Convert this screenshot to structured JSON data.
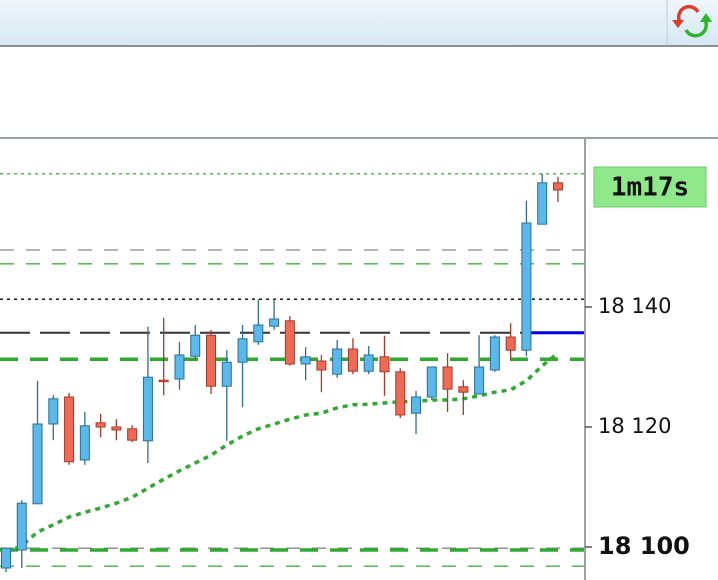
{
  "chart_data": {
    "type": "candlestick",
    "timer": "1m17s",
    "up_color": "#5bb8ea",
    "down_color": "#ee6a55",
    "open": [
      18096.5,
      18099.5,
      18107.2,
      18120.5,
      18125,
      18114.5,
      18120.7,
      18120,
      18119.7,
      18117.7,
      18127.8,
      18128,
      18131.8,
      18135.3,
      18126.8,
      18130.8,
      18134.2,
      18136.8,
      18137.7,
      18130.5,
      18131,
      18128.8,
      18133,
      18129.3,
      18131.7,
      18129.2,
      18122.3,
      18125,
      18130,
      18126.7,
      18125.5,
      18129.5,
      18135,
      18132.8,
      18153.8,
      18160.7
    ],
    "high": [
      18099.8,
      18107.8,
      18127.7,
      18125.3,
      18125.7,
      18122.5,
      18122.2,
      18121.3,
      18120.3,
      18136.7,
      18138.2,
      18134.2,
      18137,
      18136.2,
      18132.8,
      18137,
      18141.3,
      18141.3,
      18138.5,
      18133.3,
      18132,
      18134.5,
      18134.8,
      18133.5,
      18135.2,
      18129.8,
      18126,
      18130,
      18132.3,
      18127.8,
      18135.3,
      18135.3,
      18137.3,
      18157.7,
      18162.2,
      18161.7
    ],
    "low": [
      18095.8,
      18096.5,
      18107.2,
      18117.8,
      18113.7,
      18113.7,
      18118.3,
      18117.8,
      18117.5,
      18114,
      18125.3,
      18126.2,
      18131.2,
      18125.5,
      18117.7,
      18123.3,
      18133.7,
      18136.2,
      18130.2,
      18127.8,
      18125.8,
      18128.2,
      18128.8,
      18128.8,
      18125.2,
      18121.5,
      18118.8,
      18124.5,
      18122.5,
      18122,
      18125.5,
      18129.2,
      18131.2,
      18131.8,
      18153.8,
      18157.5
    ],
    "close": [
      18099.8,
      18107.3,
      18120.5,
      18124.7,
      18114.2,
      18120.2,
      18120,
      18119.5,
      18117.8,
      18128.3,
      18127.7,
      18132,
      18135.3,
      18126.8,
      18130.8,
      18134.7,
      18137,
      18138,
      18130.5,
      18131.7,
      18129.5,
      18133,
      18129.3,
      18132,
      18129.2,
      18122,
      18125,
      18130,
      18126.3,
      18125.8,
      18130,
      18135,
      18132.8,
      18154,
      18160.7,
      18159.5
    ],
    "moving_average": {
      "color": "#2eaa2e",
      "values": [
        18099.2,
        18100.2,
        18102.5,
        18103.7,
        18105,
        18105.8,
        18106.5,
        18107.3,
        18108.3,
        18109.8,
        18111.3,
        18112.7,
        18114,
        18115.3,
        18117,
        18118.5,
        18119.7,
        18120.5,
        18121.3,
        18122,
        18122.3,
        18123.2,
        18123.7,
        18123.8,
        18124,
        18124.2,
        18124.3,
        18124.5,
        18124.5,
        18124.7,
        18125.2,
        18125.8,
        18126.2,
        18127.7,
        18130.2,
        18132.3
      ]
    },
    "levels": [
      {
        "value": 18162.2,
        "color": "#3cb83c",
        "style": "dotted"
      },
      {
        "value": 18149.5,
        "color": "#888888",
        "style": "dashed"
      },
      {
        "value": 18147.2,
        "color": "#3cb83c",
        "style": "dashed"
      },
      {
        "value": 18141.3,
        "color": "#000000",
        "style": "dotted"
      },
      {
        "value": 18135.7,
        "color": "#333333",
        "style": "long-dash"
      },
      {
        "value": 18131.3,
        "color": "#2eaa2e",
        "style": "thick-dashed"
      },
      {
        "value": 18099.8,
        "color": "#888888",
        "style": "dashed"
      },
      {
        "value": 18099.5,
        "color": "#2eaa2e",
        "style": "thick-dashed"
      },
      {
        "value": 18096.8,
        "color": "#3cb83c",
        "style": "dashed"
      }
    ],
    "price_line": {
      "value": 18135.7,
      "color": "#0000ee"
    },
    "ylim": [
      18094.5,
      18168
    ],
    "yticks": [
      {
        "value": 18140,
        "label": "18 140"
      },
      {
        "value": 18120,
        "label": "18 120"
      },
      {
        "value": 18100,
        "label": "18 100"
      }
    ],
    "emphasized_ytick": 18100
  }
}
